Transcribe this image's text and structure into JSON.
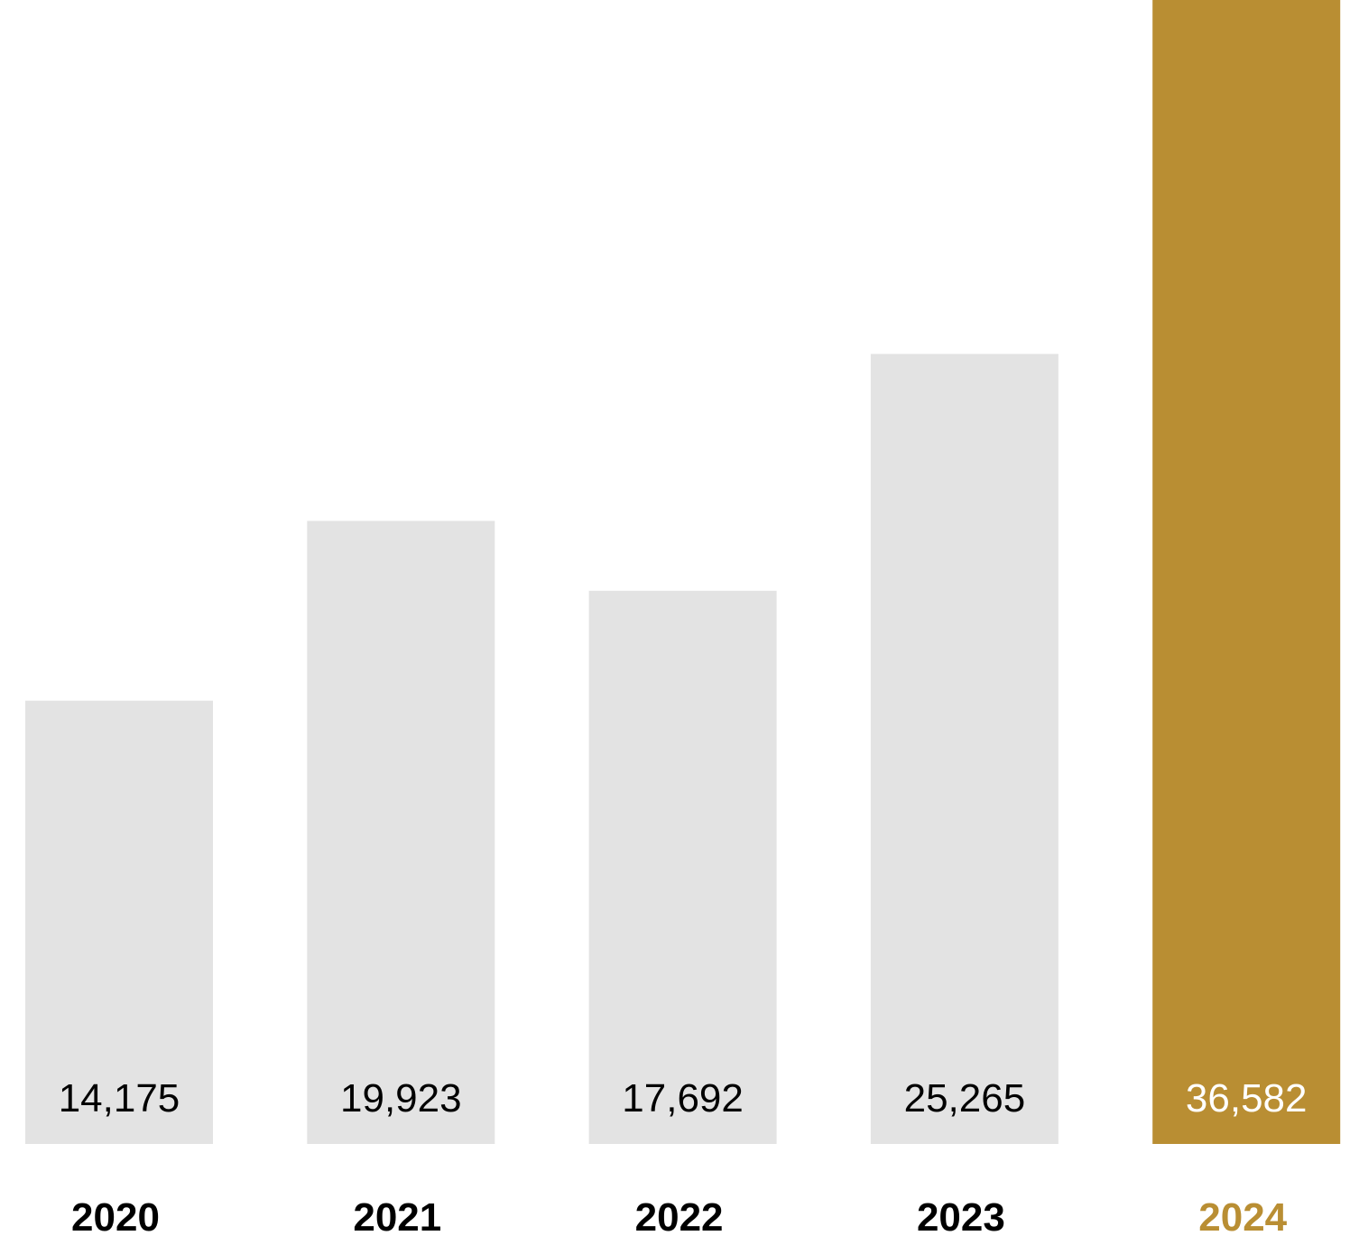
{
  "chart_data": {
    "type": "bar",
    "categories": [
      "2020",
      "2021",
      "2022",
      "2023",
      "2024"
    ],
    "values": [
      14175,
      19923,
      17692,
      25265,
      36582
    ],
    "value_labels": [
      "14,175",
      "19,923",
      "17,692",
      "25,265",
      "36,582"
    ],
    "highlight_index": 4,
    "ylim": [
      0,
      36582
    ],
    "grid": false,
    "legend": "none"
  },
  "colors": {
    "bar_default": "#e3e3e3",
    "bar_highlight": "#b98e33",
    "label_default": "#000000",
    "label_highlight": "#b98e33",
    "value_label_on_default": "#000000",
    "value_label_on_highlight": "#ffffff"
  }
}
